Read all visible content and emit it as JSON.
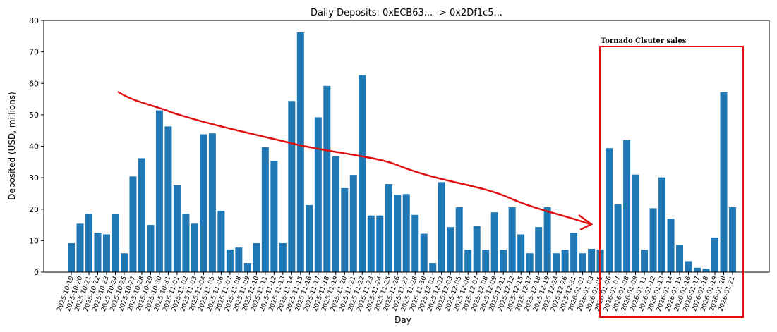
{
  "chart_data": {
    "type": "bar",
    "title": "Daily Deposits: 0xECB63... -> 0x2Df1c5...",
    "x_label": "Day",
    "y_label": "Deposited (USD, millions)",
    "annotation": "Tornado Clsuter sales",
    "color": "#1f77b4",
    "categories": [
      "2025-10-19",
      "2025-10-20",
      "2025-10-21",
      "2025-10-22",
      "2025-10-23",
      "2025-10-24",
      "2025-10-25",
      "2025-10-27",
      "2025-10-28",
      "2025-10-29",
      "2025-10-30",
      "2025-10-31",
      "2025-11-01",
      "2025-11-02",
      "2025-11-03",
      "2025-11-04",
      "2025-11-05",
      "2025-11-06",
      "2025-11-07",
      "2025-11-08",
      "2025-11-09",
      "2025-11-10",
      "2025-11-11",
      "2025-11-12",
      "2025-11-13",
      "2025-11-14",
      "2025-11-15",
      "2025-11-16",
      "2025-11-17",
      "2025-11-18",
      "2025-11-19",
      "2025-11-20",
      "2025-11-21",
      "2025-11-22",
      "2025-11-23",
      "2025-11-24",
      "2025-11-25",
      "2025-11-26",
      "2025-11-27",
      "2025-11-28",
      "2025-11-30",
      "2025-12-01",
      "2025-12-02",
      "2025-12-03",
      "2025-12-05",
      "2025-12-06",
      "2025-12-07",
      "2025-12-08",
      "2025-12-09",
      "2025-12-11",
      "2025-12-12",
      "2025-12-15",
      "2025-12-17",
      "2025-12-18",
      "2025-12-19",
      "2025-12-24",
      "2025-12-26",
      "2025-12-31",
      "2026-01-01",
      "2026-01-03",
      "2026-01-05",
      "2026-01-06",
      "2026-01-07",
      "2026-01-08",
      "2026-01-09",
      "2026-01-11",
      "2026-01-12",
      "2026-01-13",
      "2026-01-14",
      "2026-01-15",
      "2026-01-16",
      "2026-01-17",
      "2026-01-18",
      "2026-01-19",
      "2026-01-20",
      "2026-01-21"
    ],
    "values": [
      9.2,
      15.4,
      18.5,
      12.5,
      12,
      18.4,
      6,
      30.4,
      36.2,
      15,
      51.4,
      46.3,
      27.6,
      18.5,
      15.4,
      43.8,
      44.1,
      19.5,
      7.2,
      7.8,
      2.9,
      9.2,
      39.7,
      35.4,
      9.2,
      54.4,
      76.2,
      21.3,
      49.2,
      59.2,
      36.8,
      26.7,
      30.9,
      62.6,
      18,
      18,
      28,
      24.6,
      24.8,
      18.2,
      12.2,
      2.9,
      28.6,
      14.3,
      20.6,
      7.1,
      14.6,
      7.1,
      19,
      7.1,
      20.6,
      12,
      6,
      14.3,
      20.6,
      6,
      7.1,
      12.5,
      6,
      7.4,
      7.2,
      39.4,
      21.5,
      42,
      31,
      7.1,
      20.3,
      30.1,
      17,
      8.7,
      3.5,
      1.4,
      1.1,
      11,
      57.2,
      20.6
    ],
    "ylim": [
      0,
      80
    ],
    "yticks": [
      0,
      10,
      20,
      30,
      40,
      50,
      60,
      70,
      80
    ]
  }
}
